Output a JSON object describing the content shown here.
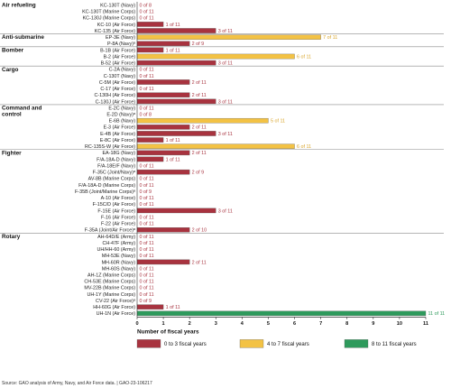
{
  "chart_data": {
    "type": "bar",
    "orientation": "horizontal",
    "title": "",
    "xlabel": "Number of fiscal years",
    "ylabel": "",
    "xlim": [
      0,
      11
    ],
    "xticks": [
      "0",
      "1",
      "2",
      "3",
      "4",
      "5",
      "6",
      "7",
      "8",
      "9",
      "10",
      "11"
    ],
    "grid": false,
    "legend_position": "bottom",
    "colors": {
      "low": "#a8333f",
      "mid": "#f3c244",
      "high": "#2e9a5c",
      "low_text": "#a8333f",
      "mid_text": "#d9a52b",
      "high_text": "#2e9a5c"
    },
    "legend": [
      {
        "label": "0 to 3 fiscal years",
        "category": "low"
      },
      {
        "label": "4 to 7 fiscal years",
        "category": "mid"
      },
      {
        "label": "8 to 11 fiscal years",
        "category": "high"
      }
    ],
    "groups": [
      {
        "name": "Air refueling",
        "rows": [
          {
            "label": "KC-130T (Navy)",
            "value": 0,
            "total": 8,
            "value_label": "0 of 8"
          },
          {
            "label": "KC-130T (Marine Corps)",
            "value": 0,
            "total": 11,
            "value_label": "0 of 11"
          },
          {
            "label": "KC-130J (Marine Corps)",
            "value": 0,
            "total": 11,
            "value_label": "0 of 11"
          },
          {
            "label": "KC-10 (Air Force)",
            "value": 1,
            "total": 11,
            "value_label": "1 of 11"
          },
          {
            "label": "KC-135 (Air Force)",
            "value": 3,
            "total": 11,
            "value_label": "3 of 11"
          }
        ]
      },
      {
        "name": "Anti-submarine",
        "rows": [
          {
            "label": "EP-3E (Navy)",
            "value": 7,
            "total": 11,
            "value_label": "7 of 11"
          },
          {
            "label": "P-8A (Navy)ᵃ",
            "value": 2,
            "total": 9,
            "value_label": "2 of 9"
          }
        ]
      },
      {
        "name": "Bomber",
        "rows": [
          {
            "label": "B-1B (Air Force)",
            "value": 1,
            "total": 11,
            "value_label": "1 of 11"
          },
          {
            "label": "B-2 (Air Force)",
            "value": 6,
            "total": 11,
            "value_label": "6 of 11"
          },
          {
            "label": "B-52 (Air Force)",
            "value": 3,
            "total": 11,
            "value_label": "3 of 11"
          }
        ]
      },
      {
        "name": "Cargo",
        "rows": [
          {
            "label": "C-2A (Navy)",
            "value": 0,
            "total": 11,
            "value_label": "0 of 11"
          },
          {
            "label": "C-130T (Navy)",
            "value": 0,
            "total": 11,
            "value_label": "0 of 11"
          },
          {
            "label": "C-5M (Air Force)",
            "value": 2,
            "total": 11,
            "value_label": "2 of 11"
          },
          {
            "label": "C-17 (Air Force)",
            "value": 0,
            "total": 11,
            "value_label": "0 of 11"
          },
          {
            "label": "C-130H (Air Force)",
            "value": 2,
            "total": 11,
            "value_label": "2 of 11"
          },
          {
            "label": "C-130J (Air Force)",
            "value": 3,
            "total": 11,
            "value_label": "3 of 11"
          }
        ]
      },
      {
        "name": "Command and control",
        "rows": [
          {
            "label": "E-2C (Navy)",
            "value": 0,
            "total": 11,
            "value_label": "0 of 11"
          },
          {
            "label": "E-2D (Navy)ᵃ",
            "value": 0,
            "total": 8,
            "value_label": "0 of 8"
          },
          {
            "label": "E-6B (Navy)",
            "value": 5,
            "total": 11,
            "value_label": "5 of 11"
          },
          {
            "label": "E-3 (Air Force)",
            "value": 2,
            "total": 11,
            "value_label": "2 of 11"
          },
          {
            "label": "E-4B (Air Force)",
            "value": 3,
            "total": 11,
            "value_label": "3 of 11"
          },
          {
            "label": "E-8C (Air Force)",
            "value": 1,
            "total": 11,
            "value_label": "1 of 11"
          },
          {
            "label": "RC-135S-W (Air Force)",
            "value": 6,
            "total": 11,
            "value_label": "6 of 11"
          }
        ]
      },
      {
        "name": "Fighter",
        "rows": [
          {
            "label": "EA-18G (Navy)",
            "value": 2,
            "total": 11,
            "value_label": "2 of 11"
          },
          {
            "label": "F/A-18A-D (Navy)",
            "value": 1,
            "total": 11,
            "value_label": "1 of 11"
          },
          {
            "label": "F/A-18E/F (Navy)",
            "value": 0,
            "total": 11,
            "value_label": "0 of 11"
          },
          {
            "label": "F-35C (Joint/Navy)ᵃ",
            "value": 2,
            "total": 9,
            "value_label": "2 of 9"
          },
          {
            "label": "AV-8B (Marine Corps)",
            "value": 0,
            "total": 11,
            "value_label": "0 of 11"
          },
          {
            "label": "F/A-18A-D (Marine Corps)",
            "value": 0,
            "total": 11,
            "value_label": "0 of 11"
          },
          {
            "label": "F-35B (Joint/Marine Corps)ᵃ",
            "value": 0,
            "total": 9,
            "value_label": "0 of 9"
          },
          {
            "label": "A-10 (Air Force)",
            "value": 0,
            "total": 11,
            "value_label": "0 of 11"
          },
          {
            "label": "F-15C/D (Air Force)",
            "value": 0,
            "total": 11,
            "value_label": "0 of 11"
          },
          {
            "label": "F-15E (Air Force)",
            "value": 3,
            "total": 11,
            "value_label": "3 of 11"
          },
          {
            "label": "F-16 (Air Force)",
            "value": 0,
            "total": 11,
            "value_label": "0 of 11"
          },
          {
            "label": "F-22 (Air Force)",
            "value": 0,
            "total": 11,
            "value_label": "0 of 11"
          },
          {
            "label": "F-35A (Joint/Air Force)ᵃ",
            "value": 2,
            "total": 10,
            "value_label": "2 of 10"
          }
        ]
      },
      {
        "name": "Rotary",
        "rows": [
          {
            "label": "AH-64D/E (Army)",
            "value": 0,
            "total": 11,
            "value_label": "0 of 11"
          },
          {
            "label": "CH-47F (Army)",
            "value": 0,
            "total": 11,
            "value_label": "0 of 11"
          },
          {
            "label": "UH/HH-60 (Army)",
            "value": 0,
            "total": 11,
            "value_label": "0 of 11"
          },
          {
            "label": "MH-53E (Navy)",
            "value": 0,
            "total": 11,
            "value_label": "0 of 11"
          },
          {
            "label": "MH-60R (Navy)",
            "value": 2,
            "total": 11,
            "value_label": "2 of 11"
          },
          {
            "label": "MH-60S (Navy)",
            "value": 0,
            "total": 11,
            "value_label": "0 of 11"
          },
          {
            "label": "AH-1Z (Marine Corps)",
            "value": 0,
            "total": 11,
            "value_label": "0 of 11"
          },
          {
            "label": "CH-53E (Marine Corps)",
            "value": 0,
            "total": 11,
            "value_label": "0 of 11"
          },
          {
            "label": "MV-22B (Marine Corps)",
            "value": 0,
            "total": 11,
            "value_label": "0 of 11"
          },
          {
            "label": "UH-1Y (Marine Corps)",
            "value": 0,
            "total": 11,
            "value_label": "0 of 11"
          },
          {
            "label": "CV-22 (Air Force)ᵃ",
            "value": 0,
            "total": 9,
            "value_label": "0 of 9"
          },
          {
            "label": "HH-60G (Air Force)",
            "value": 1,
            "total": 11,
            "value_label": "1 of 11"
          },
          {
            "label": "UH-1N (Air Force)",
            "value": 11,
            "total": 11,
            "value_label": "11 of 11"
          }
        ]
      }
    ],
    "source": "Source: GAO analysis of Army, Navy, and Air Force data.  |  GAO-23-106217"
  }
}
